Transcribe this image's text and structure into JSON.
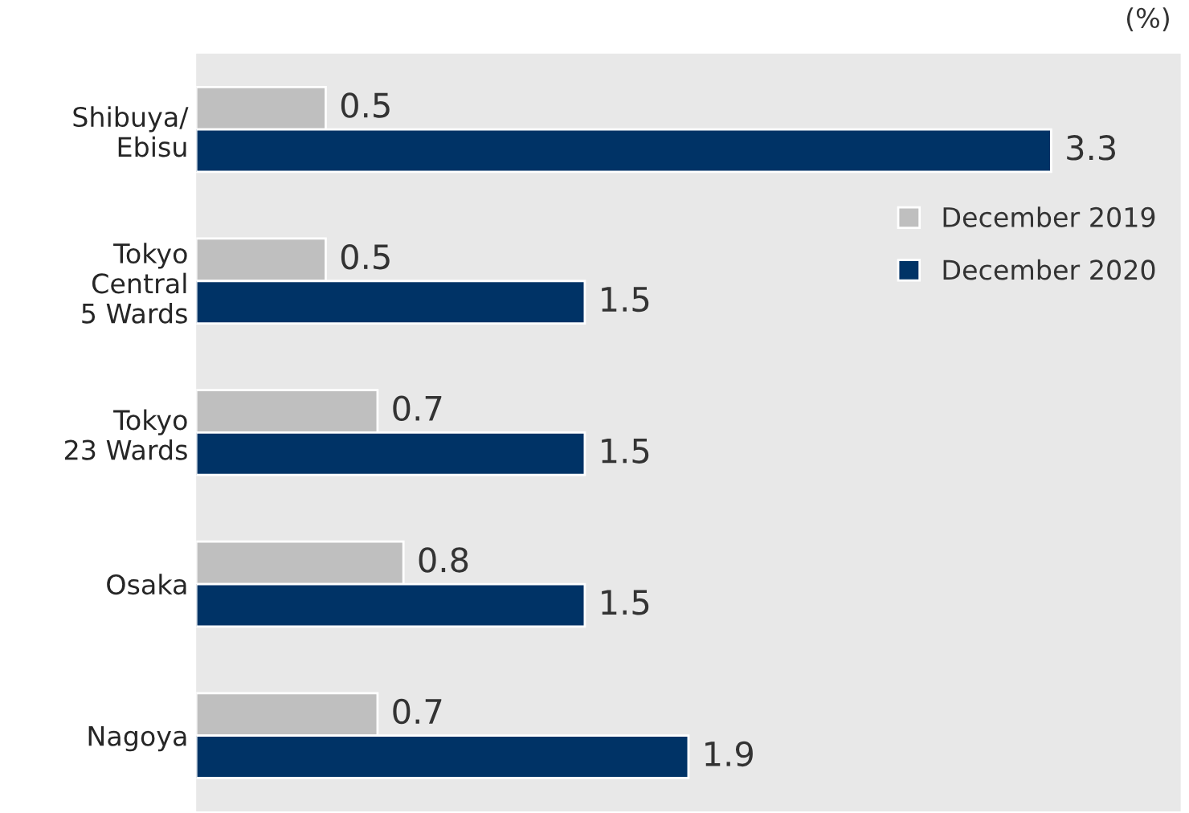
{
  "chart_data": {
    "type": "bar",
    "orientation": "horizontal",
    "categories": [
      "Shibuya/\nEbisu",
      "Tokyo\nCentral\n5 Wards",
      "Tokyo\n23 Wards",
      "Osaka",
      "Nagoya"
    ],
    "series": [
      {
        "name": "December 2019",
        "color": "#bfbfbf",
        "values": [
          0.5,
          0.5,
          0.7,
          0.8,
          0.7
        ]
      },
      {
        "name": "December 2020",
        "color": "#003366",
        "values": [
          3.3,
          1.5,
          1.5,
          1.5,
          1.9
        ]
      }
    ],
    "xlim": [
      0,
      3.8
    ],
    "tick_labels": "y",
    "data_labels": true,
    "legend": "right",
    "grid": false,
    "annotations": [
      "(%)"
    ]
  }
}
